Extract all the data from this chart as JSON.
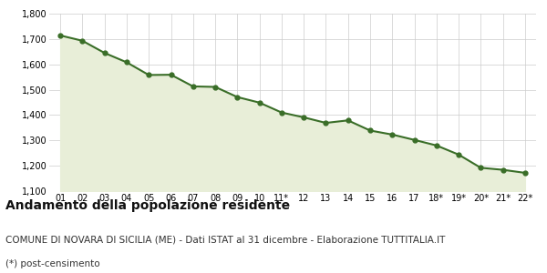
{
  "x_labels": [
    "01",
    "02",
    "03",
    "04",
    "05",
    "06",
    "07",
    "08",
    "09",
    "10",
    "11*",
    "12",
    "13",
    "14",
    "15",
    "16",
    "17",
    "18*",
    "19*",
    "20*",
    "21*",
    "22*"
  ],
  "values": [
    1714,
    1693,
    1645,
    1608,
    1558,
    1559,
    1513,
    1511,
    1471,
    1449,
    1410,
    1391,
    1369,
    1379,
    1339,
    1323,
    1302,
    1280,
    1244,
    1192,
    1184,
    1172
  ],
  "line_color": "#3a6e28",
  "fill_color": "#e8eed8",
  "marker_color": "#3a6e28",
  "bg_color": "#ffffff",
  "plot_bg_color": "#ffffff",
  "grid_color": "#cccccc",
  "ylim": [
    1100,
    1800
  ],
  "yticks": [
    1100,
    1200,
    1300,
    1400,
    1500,
    1600,
    1700,
    1800
  ],
  "title": "Andamento della popolazione residente",
  "subtitle": "COMUNE DI NOVARA DI SICILIA (ME) - Dati ISTAT al 31 dicembre - Elaborazione TUTTITALIA.IT",
  "footnote": "(*) post-censimento",
  "title_fontsize": 10,
  "subtitle_fontsize": 7.5,
  "footnote_fontsize": 7.5
}
